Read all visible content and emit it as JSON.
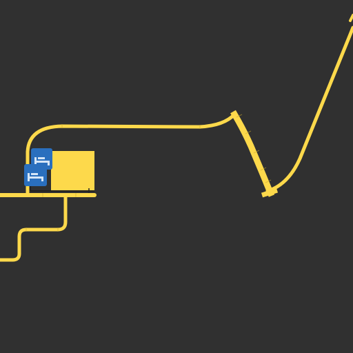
{
  "map": {
    "background_color": "#303030",
    "road_color": "#fdd94b",
    "road_edge_color": "#d9b838",
    "building_color": "#fdd94b",
    "building_outline_color": "#222222",
    "poi_color": "#2a6fbe",
    "poi_glyph_color": "#d6e6f7",
    "roads": [
      {
        "name": "main-road"
      },
      {
        "name": "loop-road"
      },
      {
        "name": "lower-connector-road"
      },
      {
        "name": "ramp-road"
      },
      {
        "name": "east-road"
      }
    ],
    "buildings": [
      {
        "name": "building-block"
      }
    ],
    "pois": [
      {
        "icon": "bed-icon"
      },
      {
        "icon": "bed-icon"
      }
    ]
  }
}
